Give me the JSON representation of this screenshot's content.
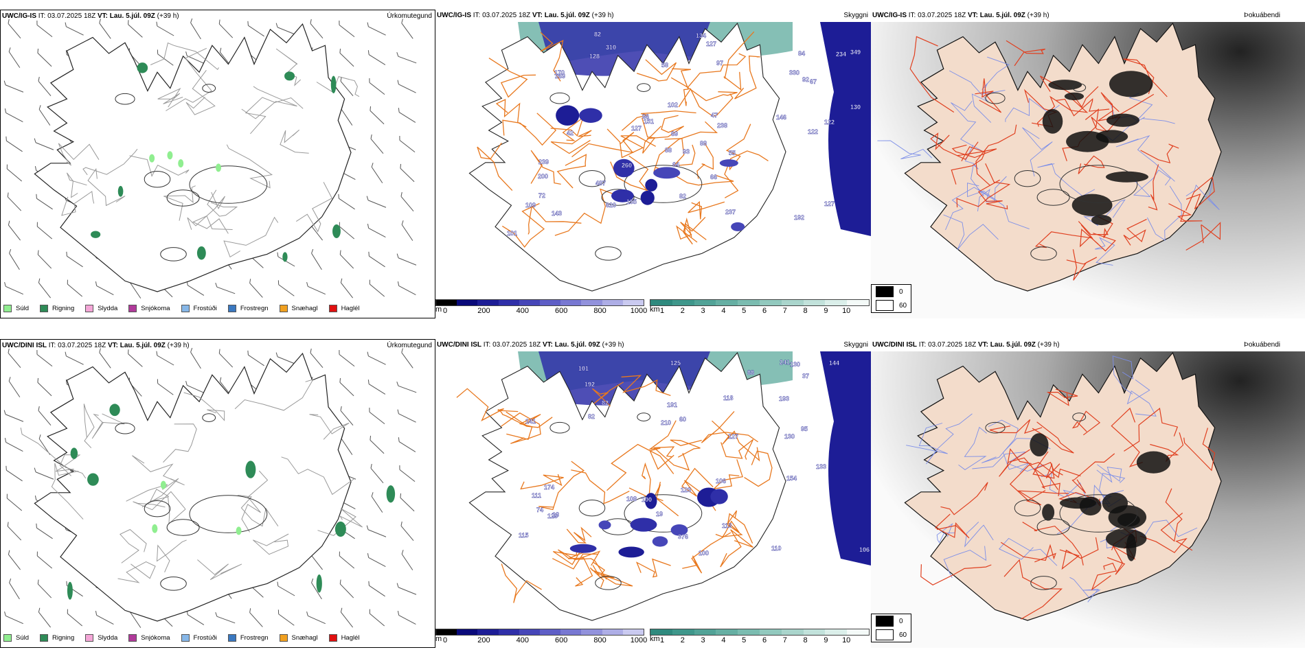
{
  "rows": [
    {
      "model": "UWC/IG-IS",
      "run": "IT: 03.07.2025 18Z",
      "valid": "VT: Lau. 5.júl. 09Z",
      "lead": "(+39 h)",
      "panels": {
        "precip": {
          "title": "Úrkomutegund"
        },
        "cloud": {
          "title": "Skyggni",
          "labels": [
            "128",
            "122",
            "151",
            "192",
            "200",
            "269",
            "238",
            "620",
            "260",
            "234",
            "330",
            "310",
            "170",
            "349",
            "155",
            "127",
            "143",
            "92",
            "134",
            "237",
            "239",
            "96",
            "146",
            "102",
            "88",
            "127",
            "487",
            "109",
            "127",
            "84",
            "88",
            "64",
            "82",
            "82",
            "66",
            "97",
            "93",
            "101",
            "69",
            "55",
            "72",
            "58",
            "130",
            "42",
            "122",
            "67",
            "47"
          ]
        },
        "fog": {
          "title": "Þokuábendi"
        }
      }
    },
    {
      "model": "UWC/DINI ISL",
      "run": "IT: 03.07.2025 18Z",
      "valid": "VT: Lau. 5.júl. 09Z",
      "lead": "(+39 h)",
      "panels": {
        "precip": {
          "title": "Úrkomutegund"
        },
        "cloud": {
          "title": "Skyggni",
          "labels": [
            "210",
            "133",
            "129",
            "191",
            "174",
            "141",
            "125",
            "130",
            "100",
            "130",
            "192",
            "144",
            "154",
            "193",
            "376",
            "241",
            "110",
            "113",
            "111",
            "123",
            "118",
            "115",
            "108",
            "95",
            "106",
            "127",
            "106",
            "82",
            "88",
            "82",
            "101",
            "37",
            "74",
            "18",
            "19",
            "60",
            "100"
          ]
        },
        "fog": {
          "title": "Þokuábendi"
        }
      }
    }
  ],
  "precip_legend": [
    {
      "label": "Súld",
      "color": "#90ee90"
    },
    {
      "label": "Rigning",
      "color": "#2e8b57"
    },
    {
      "label": "Slydda",
      "color": "#f4a6d7"
    },
    {
      "label": "Snjókoma",
      "color": "#b03a9a"
    },
    {
      "label": "Frostúði",
      "color": "#87b7e8"
    },
    {
      "label": "Frostregn",
      "color": "#3a78c0"
    },
    {
      "label": "Snæhagl",
      "color": "#f0a020"
    },
    {
      "label": "Haglél",
      "color": "#e01010"
    }
  ],
  "cloudbase_scale": {
    "unit": "m",
    "ticks": [
      "0",
      "200",
      "400",
      "600",
      "800",
      "1000"
    ],
    "colors": [
      "#000000",
      "#0a0a7a",
      "#1d1d96",
      "#2f2fa8",
      "#4646b8",
      "#5e5ec6",
      "#7878d2",
      "#9292dc",
      "#aeaee6",
      "#cacaf0"
    ]
  },
  "visibility_scale": {
    "unit": "km",
    "ticks": [
      "1",
      "2",
      "3",
      "4",
      "5",
      "6",
      "7",
      "8",
      "9",
      "10"
    ],
    "colors": [
      "#2f8a7e",
      "#3f978b",
      "#52a397",
      "#66afa3",
      "#7bbcb0",
      "#92c9be",
      "#aad5cc",
      "#c2e2db",
      "#dbefea",
      "#f4faf8"
    ]
  },
  "fog_legend": [
    {
      "label": "0",
      "color": "#000000"
    },
    {
      "label": "60",
      "color": "#ffffff"
    }
  ],
  "colors": {
    "road": "#e8781e",
    "river": "#7d8fe8",
    "land_fog": "#f3dccb"
  }
}
